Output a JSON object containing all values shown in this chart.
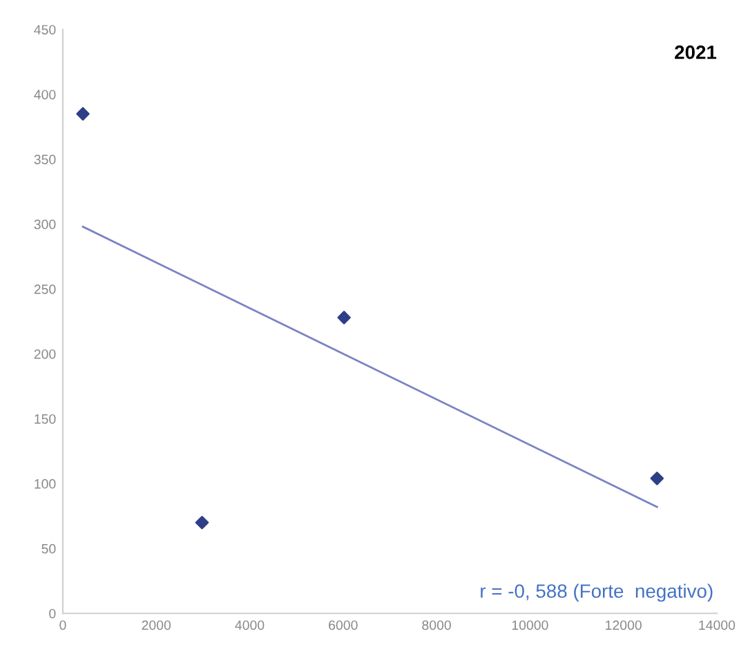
{
  "chart_data": {
    "type": "scatter",
    "title": "2021",
    "series": [
      {
        "color": "#2e3f86",
        "marker": "diamond",
        "x": [
          430,
          2980,
          6020,
          12720
        ],
        "values": [
          385,
          70,
          228,
          104
        ]
      },
      {
        "type": "line",
        "color": "#7a82c4",
        "marker": "none",
        "x": [
          430,
          12720
        ],
        "values": [
          298,
          82
        ]
      }
    ],
    "xlim": [
      0,
      14000
    ],
    "xticks": [
      0,
      2000,
      4000,
      6000,
      8000,
      10000,
      12000,
      14000
    ],
    "ylim": [
      0,
      450
    ],
    "yticks": [
      0,
      50,
      100,
      150,
      200,
      250,
      300,
      350,
      400,
      450
    ],
    "grid": false,
    "annotations": [
      "r = -0, 588 (Forte  negativo)"
    ]
  }
}
